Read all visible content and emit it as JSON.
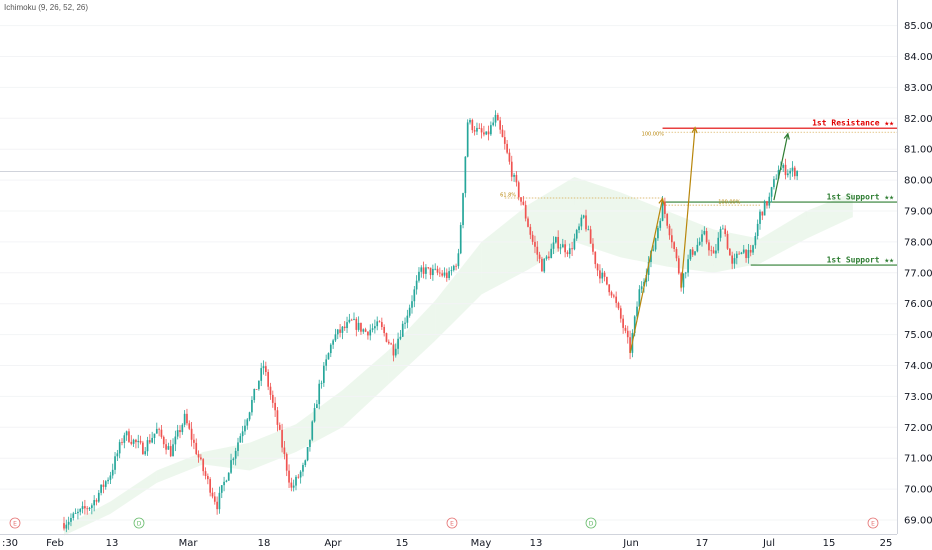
{
  "indicator_label": "Ichimoku (9, 26, 52, 26)",
  "chart_data": {
    "type": "candlestick",
    "price_axis": {
      "min": 69.0,
      "max": 85.0,
      "ticks": [
        "85.00",
        "84.00",
        "83.00",
        "82.00",
        "81.00",
        "80.00",
        "79.00",
        "78.00",
        "77.00",
        "76.00",
        "75.00",
        "74.00",
        "73.00",
        "72.00",
        "71.00",
        "70.00",
        "69.00"
      ]
    },
    "time_axis": {
      "ticks": [
        ":30",
        "Feb",
        "13",
        "Mar",
        "18",
        "Apr",
        "15",
        "May",
        "13",
        "Jun",
        "17",
        "Jul",
        "15",
        "25"
      ]
    },
    "current_price": {
      "value": 80.28,
      "label": "80.28",
      "color": "#ef5350"
    },
    "levels": [
      {
        "name": "1st Resistance ★★",
        "value": 81.68,
        "label": "81.68",
        "color": "#e00000"
      },
      {
        "name": "1st Support ★★",
        "value": 79.29,
        "label": "79.29",
        "color": "#2e7d32"
      },
      {
        "name": "1st Support ★★",
        "value": 77.25,
        "label": "77.25",
        "color": "#2e7d32"
      }
    ],
    "fib_labels": [
      "100.00%",
      "61.8%",
      "100.00%"
    ],
    "events": [
      {
        "letter": "E",
        "time_index": 0,
        "color": "#e57373"
      },
      {
        "letter": "D",
        "time_index": 1,
        "color": "#66bb6a"
      },
      {
        "letter": "E",
        "time_index": 2,
        "color": "#e57373"
      },
      {
        "letter": "D",
        "time_index": 3,
        "color": "#66bb6a"
      },
      {
        "letter": "E",
        "time_index": 4,
        "color": "#e57373"
      }
    ],
    "price_path": [
      [
        0,
        68.9
      ],
      [
        12,
        69.5
      ],
      [
        20,
        70.5
      ],
      [
        26,
        71.8
      ],
      [
        34,
        71.3
      ],
      [
        40,
        71.9
      ],
      [
        46,
        71.2
      ],
      [
        52,
        72.3
      ],
      [
        60,
        70.6
      ],
      [
        66,
        69.5
      ],
      [
        72,
        70.9
      ],
      [
        80,
        72.6
      ],
      [
        86,
        74.0
      ],
      [
        92,
        72.1
      ],
      [
        98,
        70.0
      ],
      [
        104,
        70.8
      ],
      [
        110,
        73.3
      ],
      [
        116,
        74.9
      ],
      [
        124,
        75.4
      ],
      [
        130,
        75.1
      ],
      [
        136,
        75.3
      ],
      [
        142,
        74.5
      ],
      [
        148,
        75.7
      ],
      [
        154,
        77.1
      ],
      [
        160,
        77.0
      ],
      [
        166,
        76.9
      ],
      [
        170,
        77.5
      ],
      [
        174,
        81.9
      ],
      [
        178,
        81.6
      ],
      [
        182,
        81.4
      ],
      [
        186,
        82.0
      ],
      [
        190,
        81.1
      ],
      [
        194,
        80.0
      ],
      [
        198,
        79.1
      ],
      [
        202,
        78.0
      ],
      [
        206,
        77.2
      ],
      [
        212,
        78.0
      ],
      [
        218,
        77.7
      ],
      [
        224,
        78.8
      ],
      [
        230,
        77.1
      ],
      [
        236,
        76.4
      ],
      [
        240,
        75.5
      ],
      [
        244,
        74.5
      ],
      [
        248,
        76.4
      ],
      [
        254,
        77.8
      ],
      [
        258,
        79.2
      ],
      [
        262,
        78.1
      ],
      [
        266,
        76.7
      ],
      [
        270,
        77.6
      ],
      [
        276,
        78.2
      ],
      [
        280,
        77.5
      ],
      [
        284,
        78.6
      ],
      [
        288,
        77.2
      ],
      [
        292,
        77.8
      ],
      [
        296,
        77.5
      ],
      [
        300,
        78.9
      ],
      [
        304,
        79.4
      ],
      [
        308,
        80.4
      ],
      [
        312,
        80.3
      ],
      [
        316,
        80.28
      ]
    ],
    "cloud_path": [
      [
        0,
        68.8,
        68.5
      ],
      [
        20,
        69.6,
        69.2
      ],
      [
        40,
        70.6,
        70.2
      ],
      [
        60,
        71.2,
        70.8
      ],
      [
        80,
        71.5,
        70.6
      ],
      [
        100,
        72.1,
        71.2
      ],
      [
        120,
        73.2,
        72.0
      ],
      [
        140,
        74.5,
        73.4
      ],
      [
        160,
        76.1,
        74.8
      ],
      [
        180,
        78.0,
        76.3
      ],
      [
        200,
        79.2,
        77.1
      ],
      [
        220,
        80.1,
        78.0
      ],
      [
        240,
        79.6,
        77.5
      ],
      [
        260,
        79.0,
        77.2
      ],
      [
        280,
        78.4,
        77.0
      ],
      [
        300,
        78.1,
        77.3
      ],
      [
        320,
        79.0,
        78.1
      ],
      [
        340,
        79.6,
        78.8
      ]
    ],
    "projections": [
      {
        "from": [
          244,
          74.4
        ],
        "to": [
          258,
          79.4
        ],
        "color": "#b8860b"
      },
      {
        "from": [
          266,
          76.5
        ],
        "to": [
          272,
          81.7
        ],
        "color": "#b8860b"
      },
      {
        "from": [
          306,
          79.35
        ],
        "to": [
          312,
          81.5
        ],
        "color": "#2e7d32"
      }
    ]
  }
}
